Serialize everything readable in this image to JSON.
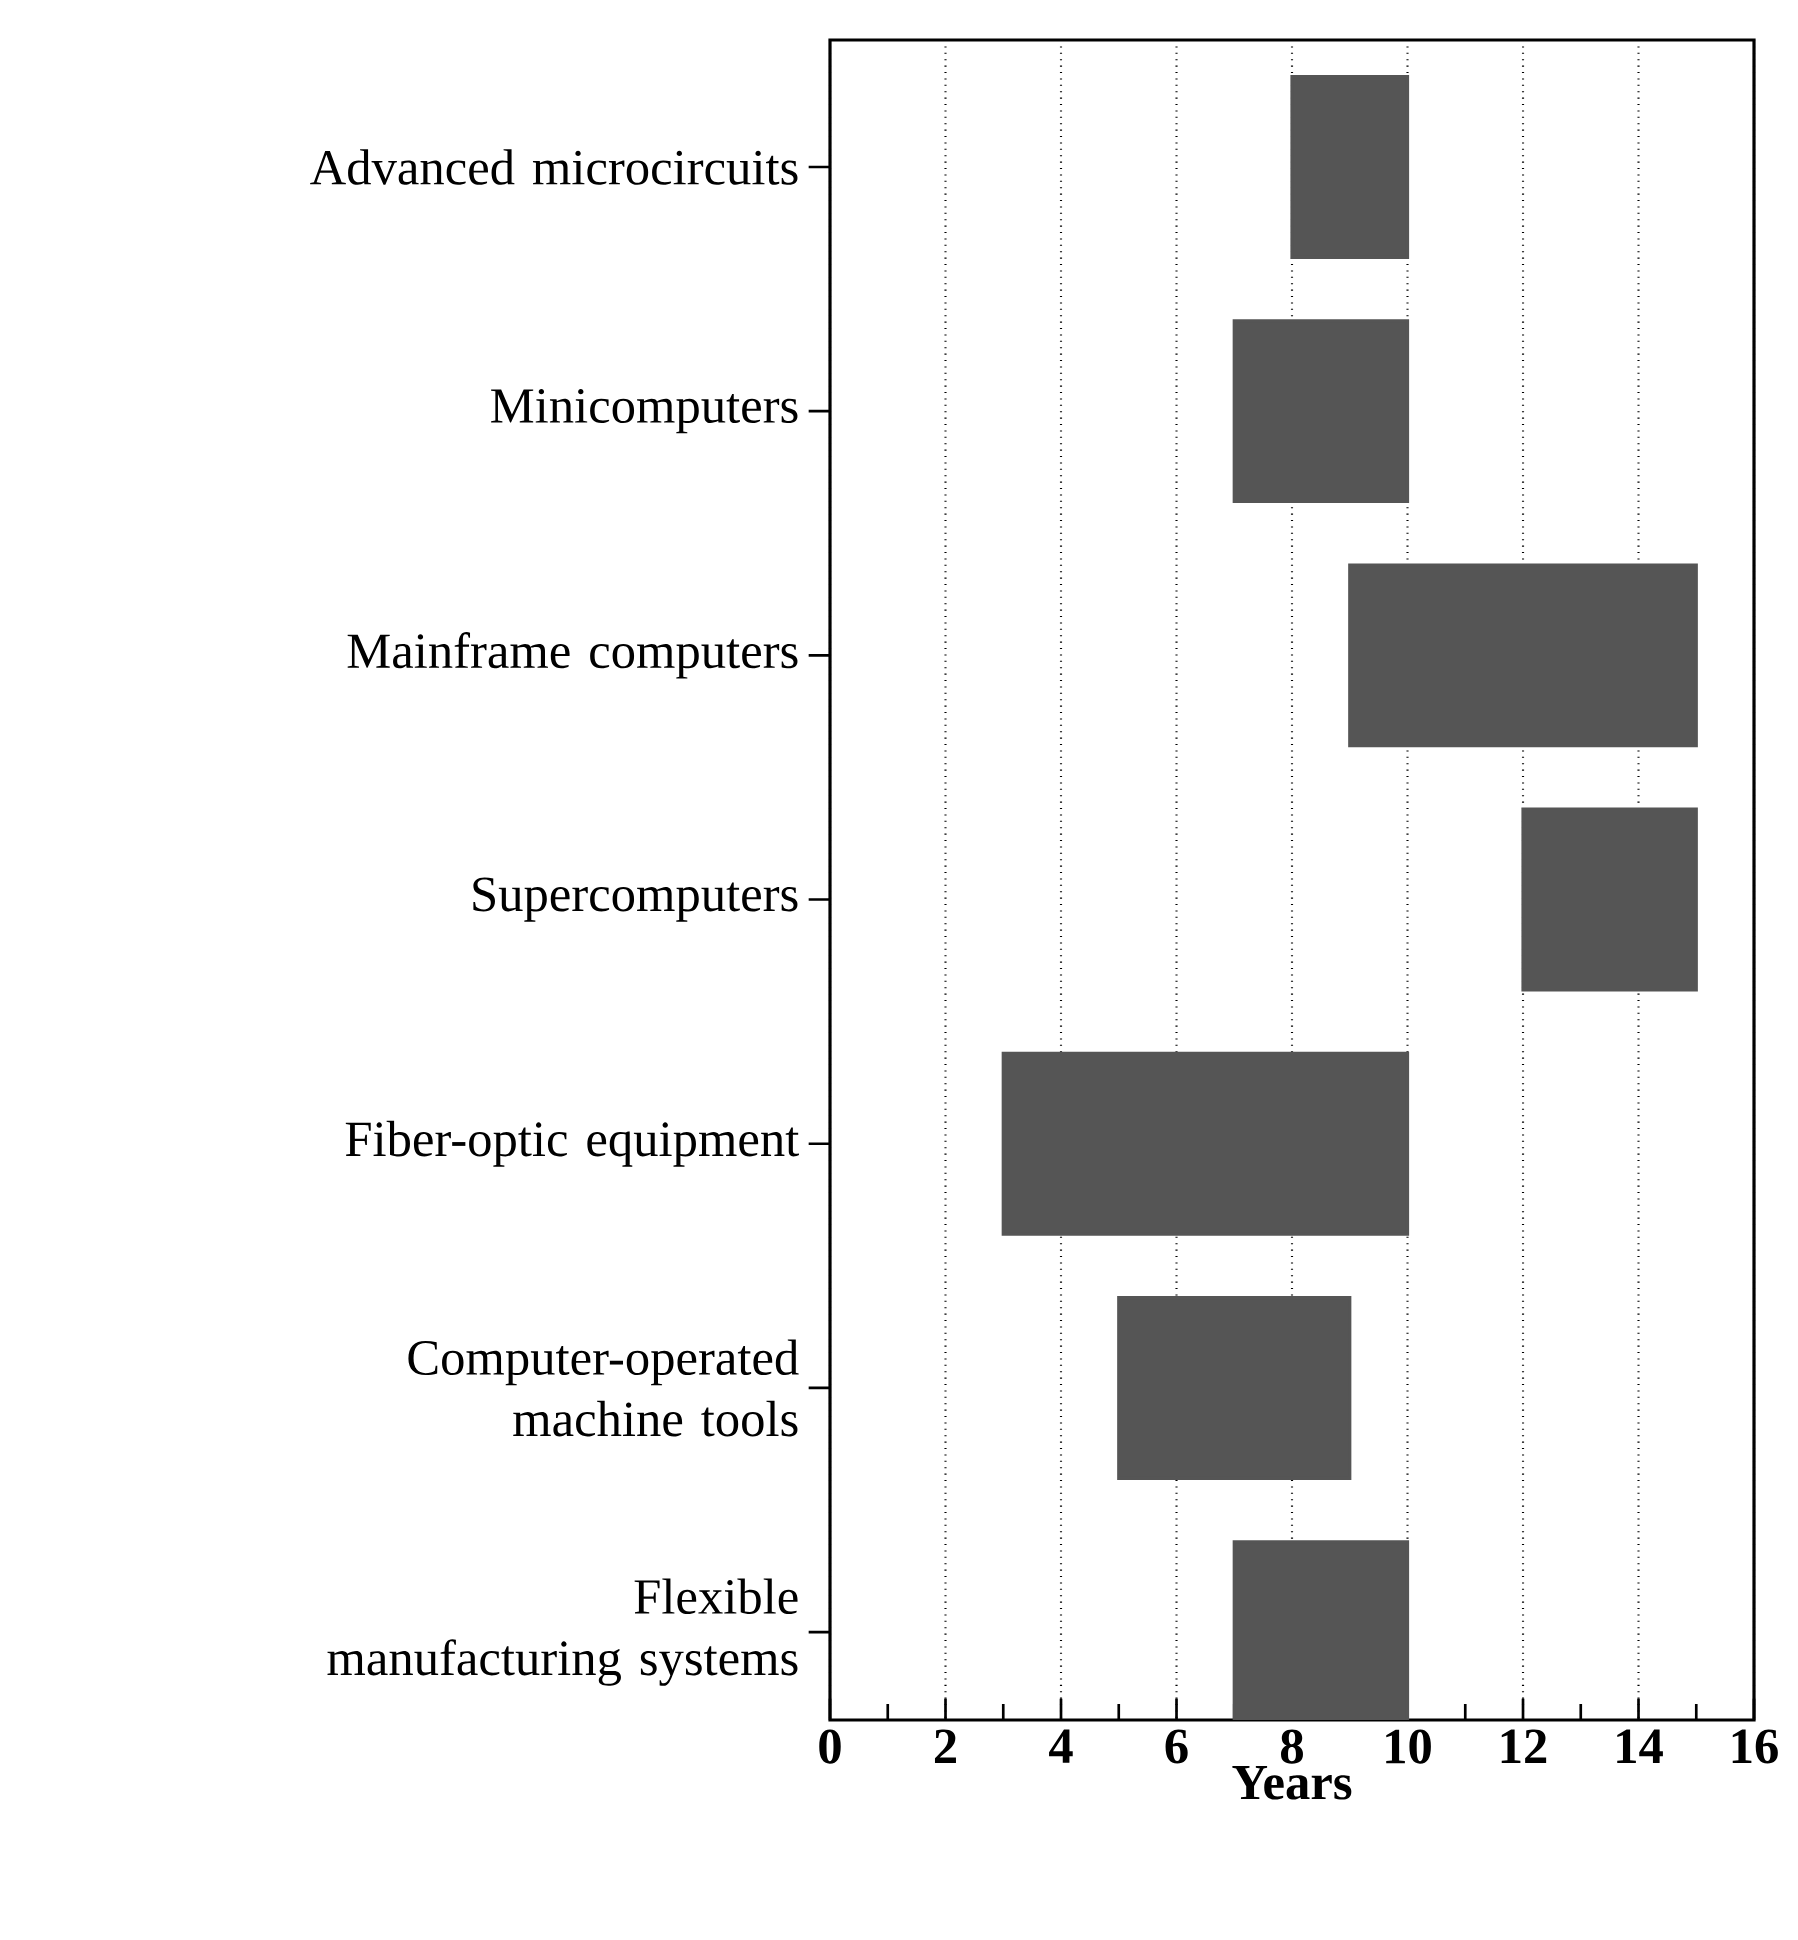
{
  "chart_data": {
    "type": "bar",
    "orientation": "horizontal",
    "categories": [
      "Advanced microcircuits",
      "Minicomputers",
      "Mainframe computers",
      "Supercomputers",
      "Fiber-optic equipment",
      "Computer-operated machine tools",
      "Flexible manufacturing systems"
    ],
    "base": [
      8,
      7,
      9,
      12,
      3,
      5,
      7
    ],
    "values": [
      2,
      3,
      6,
      3,
      7,
      4,
      3
    ],
    "color": "#555555",
    "xlabel": "Years",
    "xlim": [
      0,
      16
    ],
    "xticks": [
      0,
      {
        "value": 1,
        "label": null
      },
      2,
      {
        "value": 3,
        "label": null
      },
      4,
      {
        "value": 5,
        "label": null
      },
      6,
      {
        "value": 7,
        "label": null
      },
      8,
      {
        "value": 9,
        "label": null
      },
      10,
      {
        "value": 11,
        "label": null
      },
      12,
      {
        "value": 13,
        "label": null
      },
      14,
      {
        "value": 15,
        "label": null
      },
      16
    ],
    "grid": "x"
  }
}
